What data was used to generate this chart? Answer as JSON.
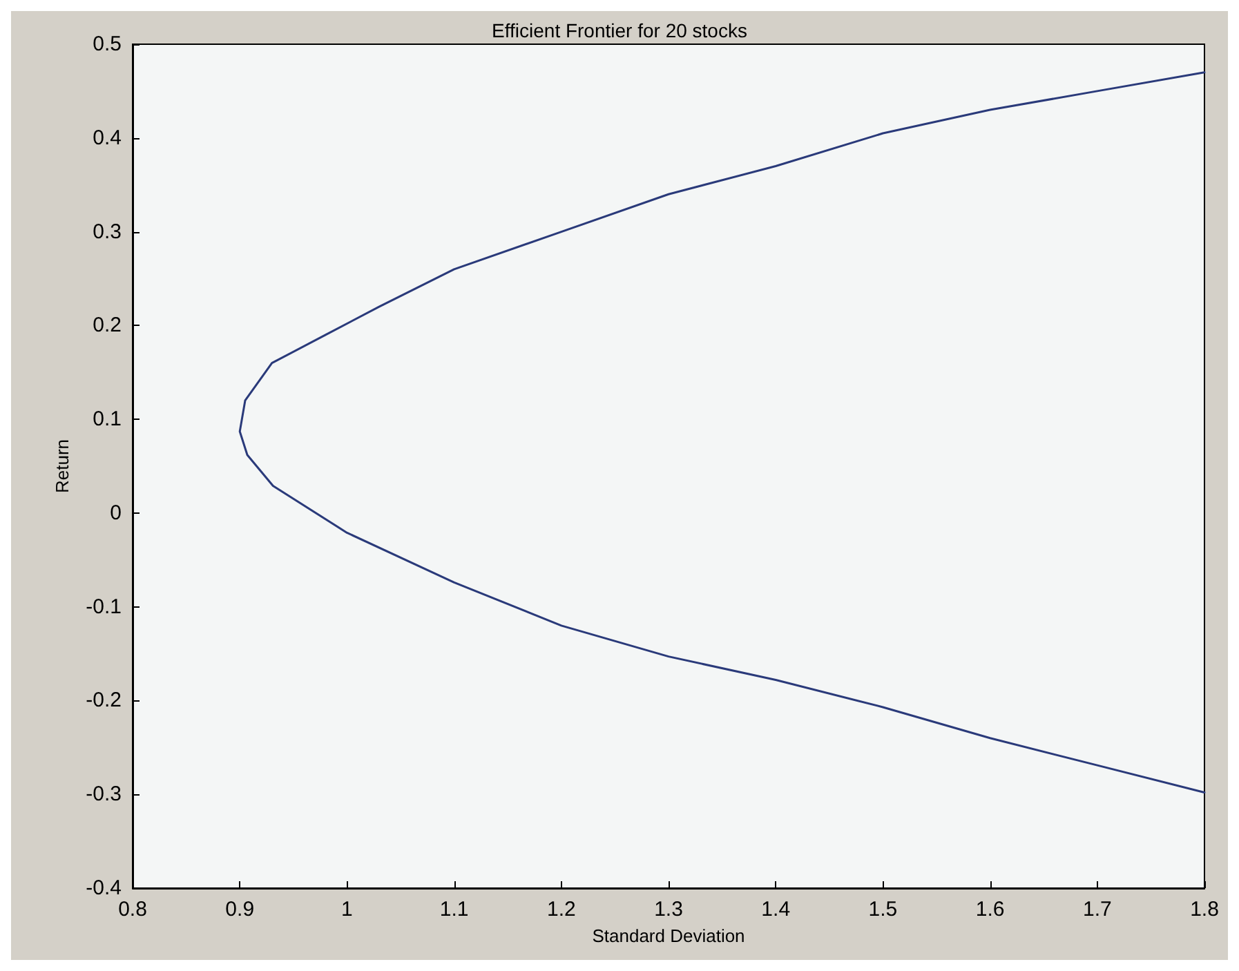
{
  "chart_data": {
    "type": "line",
    "title": "Efficient Frontier for 20 stocks",
    "xlabel": "Standard Deviation",
    "ylabel": "Return",
    "x": [
      1.8,
      1.7,
      1.6,
      1.5,
      1.4,
      1.3,
      1.2,
      1.1,
      1.03,
      0.98,
      0.93,
      0.905,
      0.9,
      0.907,
      0.931,
      1.0,
      1.1,
      1.2,
      1.3,
      1.4,
      1.5,
      1.6,
      1.7,
      1.8
    ],
    "series": [
      {
        "color": "#2a3a7a",
        "values": [
          0.47,
          0.45,
          0.43,
          0.405,
          0.37,
          0.34,
          0.3,
          0.26,
          0.22,
          0.19,
          0.16,
          0.12,
          0.087,
          0.062,
          0.029,
          -0.021,
          -0.074,
          -0.12,
          -0.153,
          -0.178,
          -0.207,
          -0.24,
          -0.269,
          -0.298
        ]
      }
    ],
    "xlim": [
      0.8,
      1.8
    ],
    "xticks": [
      0.8,
      0.9,
      1,
      1.1,
      1.2,
      1.3,
      1.4,
      1.5,
      1.6,
      1.7,
      1.8
    ],
    "ylim": [
      -0.4,
      0.5
    ],
    "yticks": [
      -0.4,
      -0.3,
      -0.2,
      -0.1,
      0,
      0.1,
      0.2,
      0.3,
      0.4,
      0.5
    ],
    "grid": false,
    "marker": "none",
    "line_style": "solid"
  }
}
